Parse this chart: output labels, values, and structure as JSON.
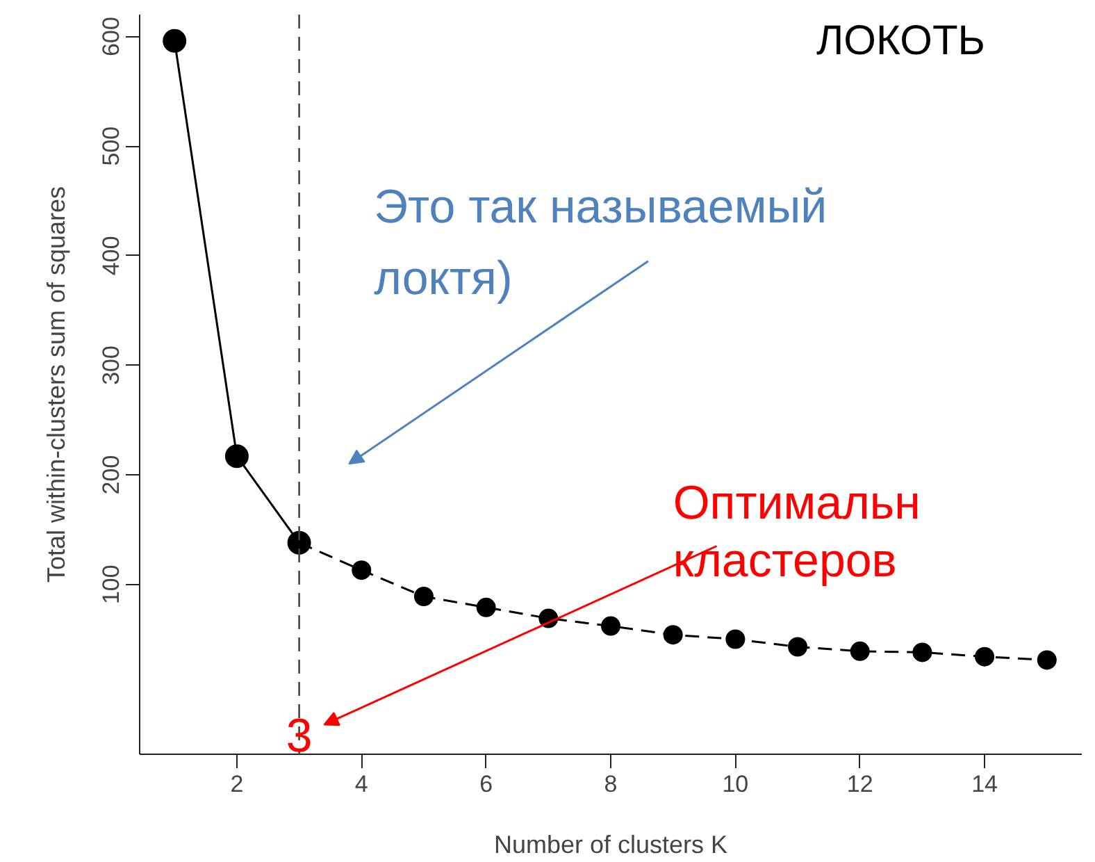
{
  "chart_data": {
    "type": "line",
    "xlabel": "Number of clusters K",
    "ylabel": "Total within-clusters sum of squares",
    "xlim": [
      0.44,
      15.56
    ],
    "ylim": [
      -55,
      620
    ],
    "xticks": [
      2,
      4,
      6,
      8,
      10,
      12,
      14
    ],
    "yticks": [
      100,
      200,
      300,
      400,
      500,
      600
    ],
    "grid": false,
    "marker": "circle",
    "series": [
      {
        "x": [
          1,
          2,
          3
        ],
        "values": [
          596,
          217,
          138
        ],
        "color": "#000000",
        "line_style": "solid"
      },
      {
        "x": [
          3,
          4,
          5,
          6,
          7,
          8,
          9,
          10,
          11,
          12,
          13,
          14,
          15
        ],
        "values": [
          138,
          113,
          89,
          79,
          69,
          62,
          54,
          50,
          43,
          39,
          38,
          34,
          31
        ],
        "color": "#000000",
        "line_style": "dashed"
      }
    ],
    "ref_lines": [
      {
        "axis": "x",
        "value": 3,
        "color": "#444444",
        "line_style": "dashed"
      }
    ],
    "annotations": [
      "ЛОКОТЬ",
      "Это так называемый",
      "локтя)",
      "Оптимальн",
      "кластеров",
      "3"
    ]
  }
}
